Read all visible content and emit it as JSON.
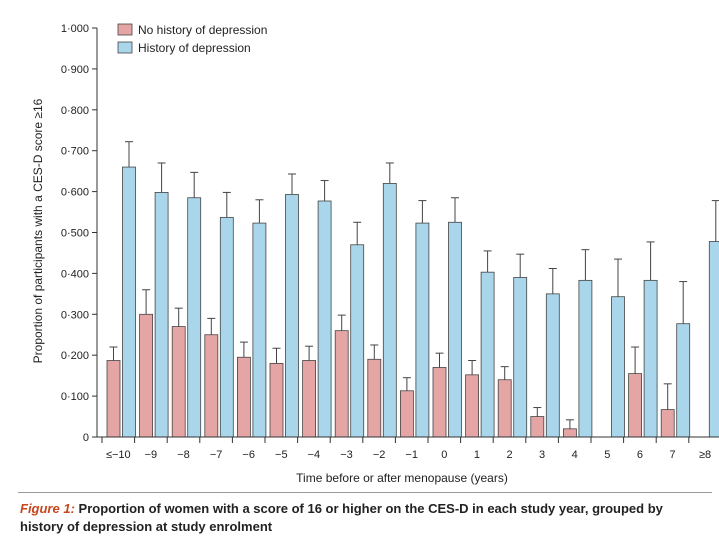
{
  "chart_data": {
    "type": "bar",
    "title": "",
    "xlabel": "Time before or after menopause (years)",
    "ylabel": "Proportion of participants with a CES-D score ≥16",
    "ylim": [
      0,
      1.0
    ],
    "yticks": [
      "0",
      "0·100",
      "0·200",
      "0·300",
      "0·400",
      "0·500",
      "0·600",
      "0·700",
      "0·800",
      "0·900",
      "1·000"
    ],
    "categories": [
      "≤−10",
      "−9",
      "−8",
      "−7",
      "−6",
      "−5",
      "−4",
      "−3",
      "−2",
      "−1",
      "0",
      "1",
      "2",
      "3",
      "4",
      "5",
      "6",
      "7",
      "≥8"
    ],
    "series": [
      {
        "name": "No history of depression",
        "color": "#e6a5a5",
        "values": [
          0.187,
          0.3,
          0.27,
          0.25,
          0.195,
          0.18,
          0.187,
          0.26,
          0.19,
          0.113,
          0.17,
          0.152,
          0.14,
          0.05,
          0.02,
          null,
          0.155,
          0.067,
          null
        ],
        "error_upper": [
          0.22,
          0.36,
          0.315,
          0.29,
          0.232,
          0.217,
          0.222,
          0.298,
          0.225,
          0.145,
          0.205,
          0.187,
          0.172,
          0.072,
          0.042,
          null,
          0.22,
          0.13,
          null
        ]
      },
      {
        "name": "History of depression",
        "color": "#a9d6ea",
        "values": [
          0.66,
          0.598,
          0.585,
          0.537,
          0.523,
          0.593,
          0.577,
          0.47,
          0.62,
          0.523,
          0.525,
          0.403,
          0.39,
          0.35,
          0.383,
          0.343,
          0.383,
          0.277,
          0.478
        ],
        "error_upper": [
          0.722,
          0.67,
          0.647,
          0.598,
          0.58,
          0.643,
          0.627,
          0.525,
          0.67,
          0.578,
          0.585,
          0.455,
          0.447,
          0.412,
          0.458,
          0.435,
          0.477,
          0.38,
          0.578
        ]
      }
    ],
    "legend_position": "top-left",
    "grid": false
  },
  "caption": {
    "label": "Figure 1:",
    "text": " Proportion of women with a score of 16 or higher on the CES-D in each study year, grouped by history of depression at study enrolment"
  }
}
